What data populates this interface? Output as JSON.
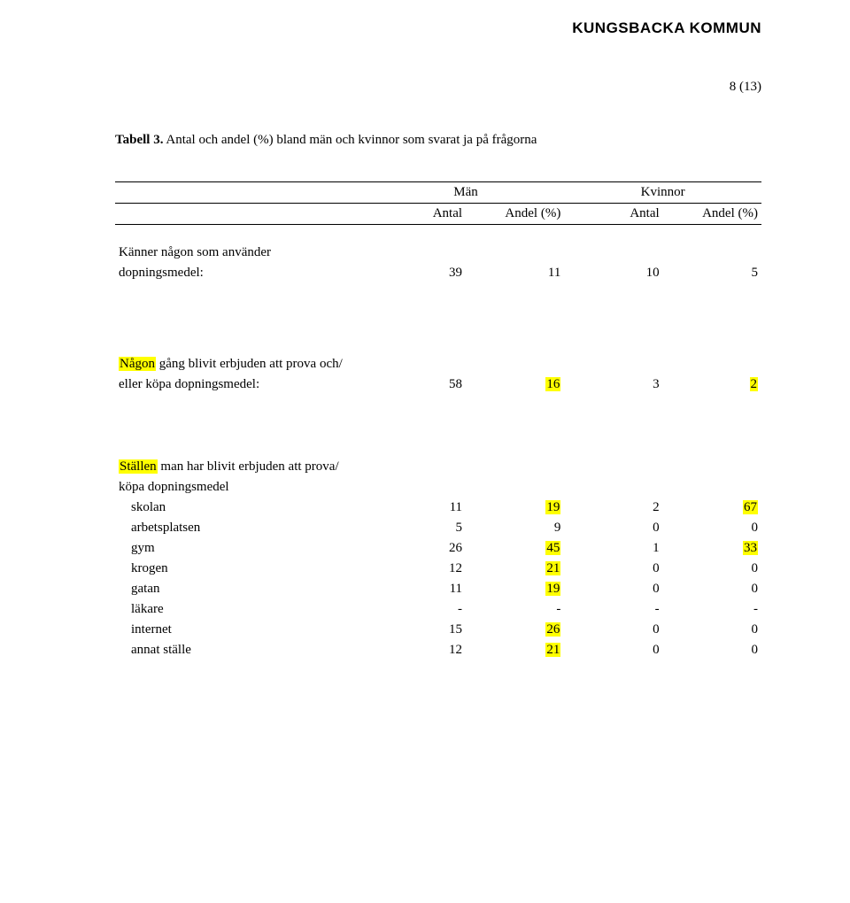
{
  "header": {
    "org": "KUNGSBACKA KOMMUN",
    "page_number": "8 (13)"
  },
  "caption": {
    "label": "Tabell 3.",
    "text": " Antal och andel (%) bland män och kvinnor som svarat ja på frågorna"
  },
  "columns": {
    "group_men": "Män",
    "group_women": "Kvinnor",
    "sub_antal": "Antal",
    "sub_andel": "Andel (%)"
  },
  "section1": {
    "line1": "Känner någon som använder",
    "line2": "dopningsmedel:",
    "vals": [
      "39",
      "11",
      "10",
      "5"
    ]
  },
  "section2": {
    "line1_prefix": "Någon",
    "line1_rest": " gång blivit erbjuden att prova och/",
    "line2": "eller köpa dopningsmedel:",
    "vals": [
      "58",
      "16",
      "3",
      "2"
    ]
  },
  "section3": {
    "line1_prefix": "Ställen",
    "line1_rest": " man har blivit erbjuden att prova/",
    "line2": "köpa dopningsmedel",
    "rows": [
      {
        "label": "skolan",
        "v": [
          "11",
          "19",
          "2",
          "67"
        ],
        "hl": [
          false,
          true,
          false,
          true
        ]
      },
      {
        "label": "arbetsplatsen",
        "v": [
          "5",
          "9",
          "0",
          "0"
        ],
        "hl": [
          false,
          false,
          false,
          false
        ]
      },
      {
        "label": "gym",
        "v": [
          "26",
          "45",
          "1",
          "33"
        ],
        "hl": [
          false,
          true,
          false,
          true
        ]
      },
      {
        "label": "krogen",
        "v": [
          "12",
          "21",
          "0",
          "0"
        ],
        "hl": [
          false,
          true,
          false,
          false
        ]
      },
      {
        "label": "gatan",
        "v": [
          "11",
          "19",
          "0",
          "0"
        ],
        "hl": [
          false,
          true,
          false,
          false
        ]
      },
      {
        "label": "läkare",
        "v": [
          "-",
          "-",
          "-",
          "-"
        ],
        "hl": [
          false,
          false,
          false,
          false
        ]
      },
      {
        "label": "internet",
        "v": [
          "15",
          "26",
          "0",
          "0"
        ],
        "hl": [
          false,
          true,
          false,
          false
        ]
      },
      {
        "label": "annat ställe",
        "v": [
          "12",
          "21",
          "0",
          "0"
        ],
        "hl": [
          false,
          true,
          false,
          false
        ]
      }
    ]
  }
}
